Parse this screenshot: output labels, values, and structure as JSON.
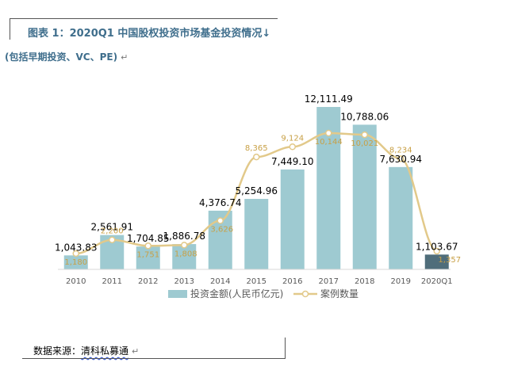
{
  "header": {
    "title": "图表 1：2020Q1 中国股权投资市场基金投资情况↓",
    "subtitle": "(包括早期投资、VC、PE)",
    "paragraph_mark": "↵"
  },
  "footer": {
    "source_label": "数据来源：",
    "source_name": "清科私募通",
    "paragraph_mark": "↵"
  },
  "chart_data": {
    "type": "bar",
    "categories": [
      "2010",
      "2011",
      "2012",
      "2013",
      "2014",
      "2015",
      "2016",
      "2017",
      "2018",
      "2019",
      "2020Q1"
    ],
    "series": [
      {
        "name": "投资金额(人民币亿元)",
        "type": "bar",
        "values": [
          1043.83,
          2561.91,
          1704.85,
          1886.78,
          4376.74,
          5254.96,
          7449.1,
          12111.49,
          10788.06,
          7630.94,
          1103.67
        ],
        "labels": [
          "1,043.83",
          "2,561.91",
          "1,704.85",
          "1,886.78",
          "4,376.74",
          "5,254.96",
          "7,449.10",
          "12,111.49",
          "10,788.06",
          "7,630.94",
          "1,103.67"
        ]
      },
      {
        "name": "案例数量",
        "type": "line",
        "values": [
          1180,
          2200,
          1751,
          1808,
          3626,
          8365,
          9124,
          10144,
          10021,
          8234,
          1357
        ],
        "labels": [
          "1,180",
          "2,200",
          "1,751",
          "1,808",
          "3,626",
          "8,365",
          "9,124",
          "10,144",
          "10,021",
          "8,234",
          "1,357"
        ]
      }
    ],
    "colors": {
      "bar": "#9ecad1",
      "bar_highlight": "#4f6d7a",
      "line": "#e2c98a",
      "line_label": "#c8a046",
      "axis": "#d9d9d9",
      "tick": "#595959"
    },
    "legend_position": "bottom",
    "grid": false
  }
}
